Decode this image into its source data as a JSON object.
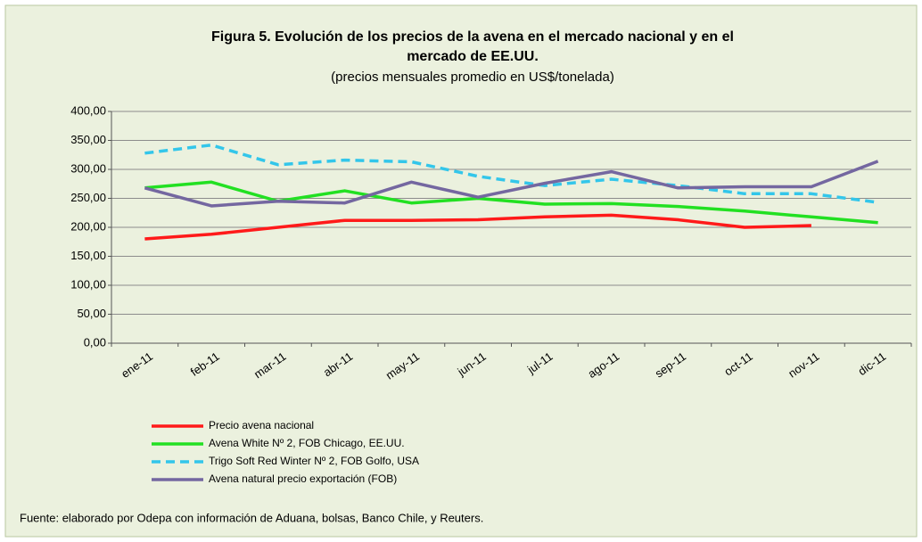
{
  "chart_data": {
    "type": "line",
    "title": "Figura 5. Evolución de los precios de la avena  en  el mercado nacional y en el",
    "title_line2": "mercado de EE.UU.",
    "subtitle": "(precios mensuales promedio en US$/tonelada)",
    "categories": [
      "ene-11",
      "feb-11",
      "mar-11",
      "abr-11",
      "may-11",
      "jun-11",
      "jul-11",
      "ago-11",
      "sep-11",
      "oct-11",
      "nov-11",
      "dic-11"
    ],
    "series": [
      {
        "name": "Precio avena nacional",
        "color": "#ff1a1a",
        "values": [
          180,
          188,
          200,
          212,
          212,
          213,
          218,
          221,
          213,
          200,
          203,
          null
        ]
      },
      {
        "name": "Avena White Nº 2, FOB Chicago, EE.UU.",
        "color": "#22e022",
        "values": [
          268,
          278,
          245,
          263,
          242,
          250,
          240,
          241,
          236,
          228,
          218,
          208
        ]
      },
      {
        "name": "Trigo Soft Red Winter Nº 2, FOB Golfo, USA",
        "color": "#33c6ea",
        "dashed": true,
        "values": [
          328,
          342,
          308,
          316,
          313,
          288,
          272,
          283,
          272,
          258,
          258,
          243
        ]
      },
      {
        "name": "Avena natural precio exportación (FOB)",
        "color": "#7467a0",
        "values": [
          268,
          237,
          245,
          242,
          278,
          252,
          276,
          296,
          268,
          270,
          270,
          314
        ]
      }
    ],
    "ylim": [
      0,
      400
    ],
    "yticks": [
      {
        "value": 0,
        "label": "0,00"
      },
      {
        "value": 50,
        "label": "50,00"
      },
      {
        "value": 100,
        "label": "100,00"
      },
      {
        "value": 150,
        "label": "150,00"
      },
      {
        "value": 200,
        "label": "200,00"
      },
      {
        "value": 250,
        "label": "250,00"
      },
      {
        "value": 300,
        "label": "300,00"
      },
      {
        "value": 350,
        "label": "350,00"
      },
      {
        "value": 400,
        "label": "400,00"
      }
    ],
    "grid": true,
    "source": "Fuente: elaborado por Odepa con información de Aduana, bolsas,  Banco Chile, y Reuters."
  }
}
